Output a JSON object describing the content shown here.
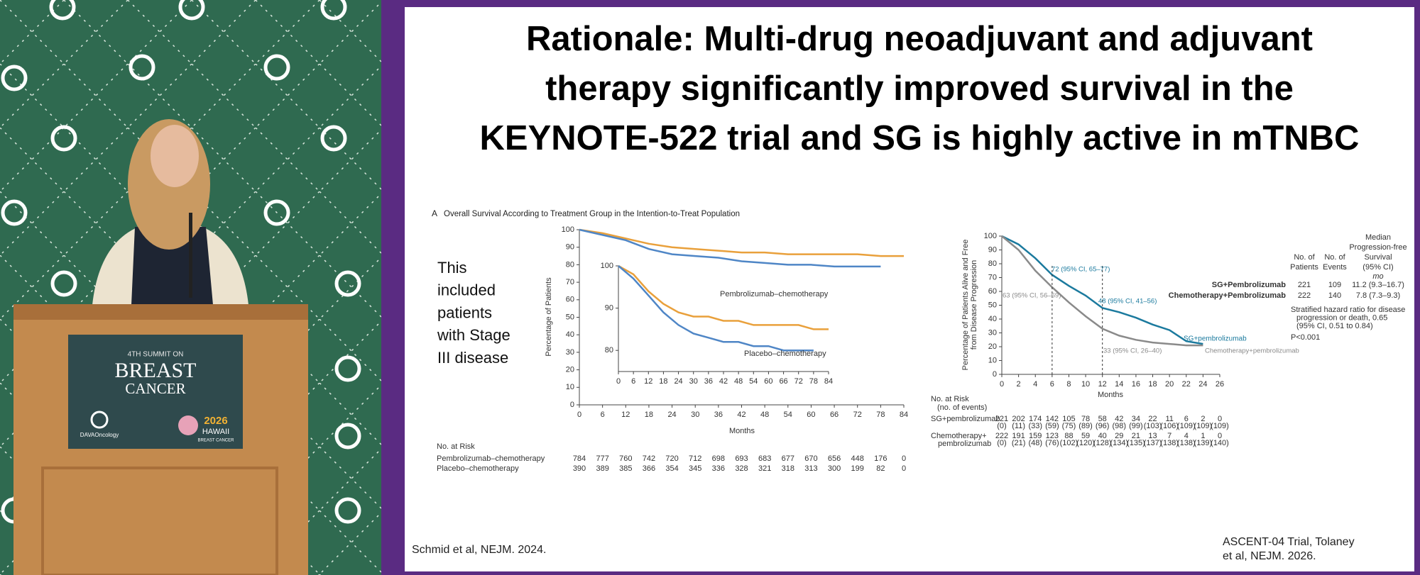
{
  "podium_sign": {
    "event": "4TH SUMMIT ON",
    "line1": "BREAST",
    "line2": "CANCER",
    "organizer": "DAVAOncology",
    "year": "2026",
    "location": "HAWAII",
    "location_sub": "BREAST CANCER"
  },
  "slide": {
    "title": [
      "Rationale: Multi-drug neoadjuvant and adjuvant",
      "therapy significantly improved survival in the",
      "KEYNOTE-522 trial and SG is highly active in mTNBC"
    ],
    "note": [
      "This",
      "included",
      "patients",
      "with Stage",
      "III disease"
    ],
    "citation_left": "Schmid et al, NEJM. 2024.",
    "citation_right": [
      "ASCENT-04 Trial, Tolaney",
      "et al, NEJM. 2026."
    ]
  },
  "chart_data": [
    {
      "type": "line",
      "panel": "A",
      "title": "Overall Survival According to Treatment Group in the Intention-to-Treat Population",
      "xlabel": "Months",
      "ylabel": "Percentage of Patients",
      "x": [
        0,
        6,
        12,
        18,
        24,
        30,
        36,
        42,
        48,
        54,
        60,
        66,
        72,
        78,
        84
      ],
      "xlim": [
        0,
        84
      ],
      "xticks": [
        0,
        6,
        12,
        18,
        24,
        30,
        36,
        42,
        48,
        54,
        60,
        66,
        72,
        78,
        84
      ],
      "ylim": [
        0,
        100
      ],
      "yticks": [
        0,
        10,
        20,
        30,
        40,
        50,
        60,
        70,
        80,
        90,
        100
      ],
      "series": [
        {
          "color": "#e9a03b",
          "values": [
            100,
            98,
            95,
            92,
            90,
            89,
            88,
            87,
            87,
            86,
            86,
            86,
            86,
            85,
            85
          ]
        },
        {
          "color": "#4f86c6",
          "values": [
            100,
            97,
            94,
            89,
            86,
            85,
            84,
            82,
            81,
            80,
            80,
            79,
            79,
            79,
            null
          ]
        }
      ],
      "risk_table": {
        "header": "No. at Risk",
        "rows": [
          {
            "label": "Pembrolizumab–chemotherapy",
            "values": [
              784,
              777,
              760,
              742,
              720,
              712,
              698,
              693,
              683,
              677,
              670,
              656,
              448,
              176,
              0
            ]
          },
          {
            "label": "Placebo–chemotherapy",
            "values": [
              390,
              389,
              385,
              366,
              354,
              345,
              336,
              328,
              321,
              318,
              313,
              300,
              199,
              82,
              0
            ]
          }
        ]
      }
    },
    {
      "type": "line",
      "x": [
        0,
        6,
        12,
        18,
        24,
        30,
        36,
        42,
        48,
        54,
        60,
        66,
        72,
        78,
        84
      ],
      "xlim": [
        0,
        84
      ],
      "xticks": [
        0,
        6,
        12,
        18,
        24,
        30,
        36,
        42,
        48,
        54,
        60,
        66,
        72,
        78,
        84
      ],
      "ylim": [
        75,
        100
      ],
      "yticks": [
        80,
        90,
        100
      ],
      "series": [
        {
          "name": "Pembrolizumab–chemotherapy",
          "color": "#e9a03b",
          "values": [
            100,
            98,
            94,
            91,
            89,
            88,
            88,
            87,
            87,
            86,
            86,
            86,
            86,
            85,
            85
          ]
        },
        {
          "name": "Placebo–chemotherapy",
          "color": "#4f86c6",
          "values": [
            100,
            97,
            93,
            89,
            86,
            84,
            83,
            82,
            82,
            81,
            81,
            80,
            80,
            80,
            null
          ]
        }
      ]
    },
    {
      "type": "line",
      "xlabel": "Months",
      "ylabel": [
        "Percentage of Patients Alive and Free",
        "from Disease Progression"
      ],
      "x": [
        0,
        2,
        4,
        6,
        8,
        10,
        12,
        14,
        16,
        18,
        20,
        22,
        24
      ],
      "xlim": [
        0,
        26
      ],
      "xticks": [
        0,
        2,
        4,
        6,
        8,
        10,
        12,
        14,
        16,
        18,
        20,
        22,
        24,
        26
      ],
      "ylim": [
        0,
        100
      ],
      "yticks": [
        0,
        10,
        20,
        30,
        40,
        50,
        60,
        70,
        80,
        90,
        100
      ],
      "series": [
        {
          "name": "SG+pembrolizumab",
          "color": "#1b7a9e",
          "values": [
            100,
            94,
            84,
            72,
            64,
            57,
            48,
            45,
            41,
            36,
            32,
            24,
            22
          ]
        },
        {
          "name": "Chemotherapy+pembrolizumab",
          "color": "#8a8a8a",
          "values": [
            100,
            90,
            75,
            63,
            52,
            42,
            33,
            28,
            25,
            23,
            22,
            21,
            21
          ]
        }
      ],
      "annotations": [
        "72 (95% CI, 65–77)",
        "48 (95% CI, 41–56)",
        "63 (95% CI, 56–69)",
        "33 (95% CI, 26–40)"
      ],
      "risk_table": {
        "header": "No. at Risk",
        "subheader": "(no. of events)",
        "rows": [
          {
            "label": [
              "SG+pembrolizumab"
            ],
            "values": [
              221,
              202,
              174,
              142,
              105,
              78,
              58,
              42,
              34,
              22,
              11,
              6,
              2,
              0
            ],
            "events": [
              "(0)",
              "(11)",
              "(33)",
              "(59)",
              "(75)",
              "(89)",
              "(96)",
              "(98)",
              "(99)",
              "(103)",
              "(106)",
              "(109)",
              "(109)",
              "(109)"
            ]
          },
          {
            "label": [
              "Chemotherapy+",
              "pembrolizumab"
            ],
            "values": [
              222,
              191,
              159,
              123,
              88,
              59,
              40,
              29,
              21,
              13,
              7,
              4,
              1,
              0
            ],
            "events": [
              "(0)",
              "(21)",
              "(48)",
              "(76)",
              "(102)",
              "(120)",
              "(128)",
              "(134)",
              "(135)",
              "(137)",
              "(138)",
              "(138)",
              "(139)",
              "(140)"
            ]
          }
        ]
      },
      "summary_table": {
        "columns": [
          [
            "No. of",
            "Patients"
          ],
          [
            "No. of",
            "Events"
          ],
          [
            "Median",
            "Progression-free",
            "Survival",
            "(95% CI)"
          ]
        ],
        "unit": "mo",
        "rows": [
          {
            "label": "SG+Pembrolizumab",
            "patients": 221,
            "events": 109,
            "median": "11.2 (9.3–16.7)"
          },
          {
            "label": "Chemotherapy+Pembrolizumab",
            "patients": 222,
            "events": 140,
            "median": "7.8 (7.3–9.3)"
          }
        ],
        "note": [
          "Stratified hazard ratio for disease",
          "progression or death, 0.65",
          "(95% CI, 0.51 to 0.84)"
        ],
        "p_value": "P<0.001"
      }
    }
  ]
}
